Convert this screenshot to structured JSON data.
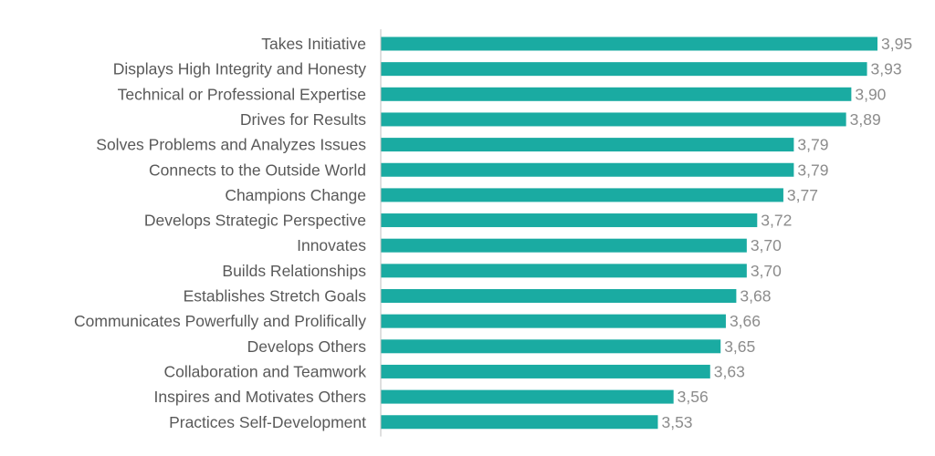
{
  "chart_data": {
    "type": "bar",
    "orientation": "horizontal",
    "categories": [
      "Takes Initiative",
      "Displays High Integrity and Honesty",
      "Technical or Professional Expertise",
      "Drives for Results",
      "Solves Problems and Analyzes Issues",
      "Connects to the Outside World",
      "Champions Change",
      "Develops Strategic Perspective",
      "Innovates",
      "Builds Relationships",
      "Establishes Stretch Goals",
      "Communicates Powerfully and Prolifically",
      "Develops Others",
      "Collaboration and Teamwork",
      "Inspires and Motivates Others",
      "Practices Self-Development"
    ],
    "values": [
      3.95,
      3.93,
      3.9,
      3.89,
      3.79,
      3.79,
      3.77,
      3.72,
      3.7,
      3.7,
      3.68,
      3.66,
      3.65,
      3.63,
      3.56,
      3.53
    ],
    "value_labels": [
      "3,95",
      "3,93",
      "3,90",
      "3,89",
      "3,79",
      "3,79",
      "3,77",
      "3,72",
      "3,70",
      "3,70",
      "3,68",
      "3,66",
      "3,65",
      "3,63",
      "3,56",
      "3,53"
    ],
    "title": "",
    "xlabel": "",
    "ylabel": "",
    "xlim": [
      3.0,
      4.0
    ],
    "grid": false,
    "legend": "none",
    "colors": {
      "bar": "#1aaba2",
      "category_text": "#595959",
      "value_text": "#8c8c8c",
      "axis": "#bfbfbf"
    }
  }
}
